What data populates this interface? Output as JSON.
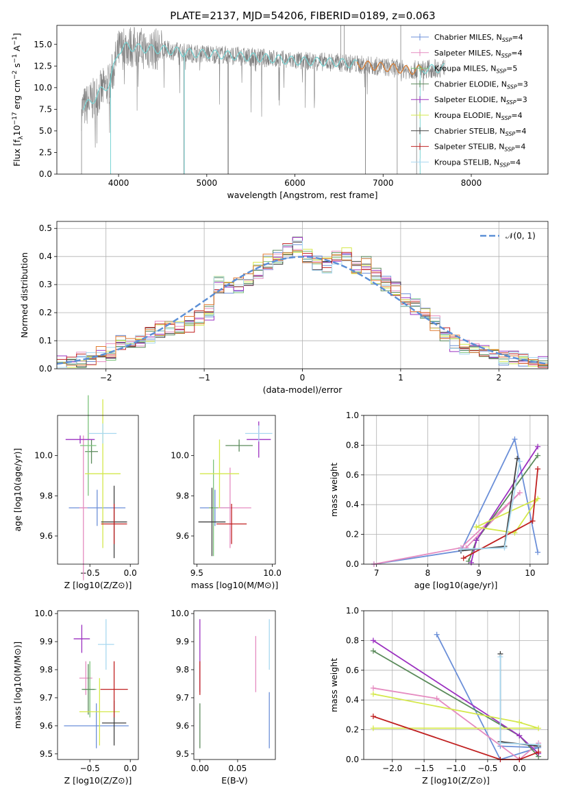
{
  "page_title": "PLATE=2137, MJD=54206, FIBERID=0189, z=0.063",
  "series_styles": [
    {
      "name": "Chabrier MILES, N$_{SSP}$=4",
      "label_main": "Chabrier MILES, N",
      "label_sub": "SSP",
      "label_tail": "=4",
      "color": "#6b8fd8"
    },
    {
      "name": "Salpeter MILES, N$_{SSP}$=4",
      "label_main": "Salpeter MILES, N",
      "label_sub": "SSP",
      "label_tail": "=4",
      "color": "#e58bc0"
    },
    {
      "name": "Kroupa MILES, N$_{SSP}$=5",
      "label_main": "Kroupa MILES, N",
      "label_sub": "SSP",
      "label_tail": "=5",
      "color": "#7ac27a"
    },
    {
      "name": "Chabrier ELODIE, N$_{SSP}$=3",
      "label_main": "Chabrier ELODIE, N",
      "label_sub": "SSP",
      "label_tail": "=3",
      "color": "#5a8a5a"
    },
    {
      "name": "Salpeter ELODIE, N$_{SSP}$=3",
      "label_main": "Salpeter ELODIE, N",
      "label_sub": "SSP",
      "label_tail": "=3",
      "color": "#9b30c0"
    },
    {
      "name": "Kroupa ELODIE, N$_{SSP}$=4",
      "label_main": "Kroupa ELODIE, N",
      "label_sub": "SSP",
      "label_tail": "=4",
      "color": "#d4e84a"
    },
    {
      "name": "Chabrier STELIB, N$_{SSP}$=4",
      "label_main": "Chabrier STELIB, N",
      "label_sub": "SSP",
      "label_tail": "=4",
      "color": "#404040"
    },
    {
      "name": "Salpeter STELIB, N$_{SSP}$=4",
      "label_main": "Salpeter STELIB, N",
      "label_sub": "SSP",
      "label_tail": "=4",
      "color": "#c02020"
    },
    {
      "name": "Kroupa STELIB, N$_{SSP}$=4",
      "label_main": "Kroupa STELIB, N",
      "label_sub": "SSP",
      "label_tail": "=4",
      "color": "#a8d8f0"
    }
  ],
  "chart_data": [
    {
      "id": "spectrum",
      "type": "line",
      "title": "PLATE=2137, MJD=54206, FIBERID=0189, z=0.063",
      "xlabel": "wavelength [Angstrom, rest frame]",
      "ylabel_main": "Flux [f",
      "ylabel_tail": "10",
      "ylabel_exp": "−17",
      "ylabel_rest": " erg cm",
      "ylabel_exp2": "−2",
      "ylabel_rest2": " s",
      "ylabel_exp3": "−1",
      "ylabel_rest3": " A",
      "ylabel_exp4": "−1",
      "ylabel_end": "]",
      "xlim": [
        3300,
        8870
      ],
      "ylim": [
        0,
        17.2
      ],
      "xticks": [
        4000,
        5000,
        6000,
        7000,
        8000
      ],
      "yticks": [
        0.0,
        2.5,
        5.0,
        7.5,
        10.0,
        12.5,
        15.0
      ],
      "legend": "upper right",
      "grid": false,
      "observed_color": "#808080",
      "model_color": "#79d4d4",
      "model_color_red": "#e07a30",
      "continuum": {
        "x": [
          3580,
          3700,
          3800,
          3900,
          3950,
          4000,
          4100,
          4200,
          4300,
          4500,
          4800,
          5000,
          5200,
          5400,
          5700,
          6000,
          6300,
          6500,
          6700,
          6900,
          7100,
          7300,
          7400,
          7600,
          7700
        ],
        "y": [
          7.5,
          8.5,
          9.6,
          10.5,
          12.5,
          14.3,
          14.8,
          14.6,
          14.5,
          14.4,
          14.0,
          13.9,
          13.8,
          13.6,
          13.4,
          13.1,
          13.0,
          12.9,
          12.7,
          12.5,
          12.3,
          12.0,
          12.1,
          12.2,
          12.3
        ]
      }
    },
    {
      "id": "residuals",
      "type": "step",
      "xlabel": "(data-model)/error",
      "ylabel": "Normed distribution",
      "xlim": [
        -2.5,
        2.5
      ],
      "ylim": [
        0,
        0.525
      ],
      "xticks": [
        -2,
        -1,
        0,
        1,
        2
      ],
      "yticks": [
        0.0,
        0.1,
        0.2,
        0.3,
        0.4,
        0.5
      ],
      "grid": true,
      "legend": "upper right",
      "gaussian_label": "𝒩(0, 1)",
      "gaussian_color": "#5b8fd6",
      "bin_edges_start": -2.5,
      "bin_width": 0.1,
      "base_hist": [
        0.02,
        0.025,
        0.03,
        0.04,
        0.05,
        0.06,
        0.09,
        0.085,
        0.1,
        0.12,
        0.14,
        0.15,
        0.14,
        0.16,
        0.18,
        0.2,
        0.3,
        0.28,
        0.3,
        0.32,
        0.35,
        0.38,
        0.4,
        0.42,
        0.44,
        0.4,
        0.38,
        0.37,
        0.39,
        0.41,
        0.36,
        0.37,
        0.33,
        0.3,
        0.28,
        0.25,
        0.22,
        0.2,
        0.16,
        0.12,
        0.09,
        0.08,
        0.075,
        0.06,
        0.05,
        0.04,
        0.035,
        0.03,
        0.025,
        0.02
      ]
    },
    {
      "id": "age_vs_Z",
      "type": "errorbar",
      "xlabel": "Z [log10(Z/Z⊙)]",
      "ylabel": "age  [log10(age/yr)]",
      "xlim": [
        -0.9,
        0.1
      ],
      "ylim": [
        9.46,
        10.2
      ],
      "xticks": [
        -0.5,
        0.0
      ],
      "yticks": [
        9.6,
        9.8,
        10.0
      ],
      "points": [
        {
          "x": -0.41,
          "y": 9.74,
          "xerr": 0.35,
          "yerr": 0.09,
          "series": 0
        },
        {
          "x": -0.58,
          "y": 9.74,
          "xerr": 0.05,
          "yerr": 0.36,
          "series": 1
        },
        {
          "x": -0.48,
          "y": 10.02,
          "xerr": 0.08,
          "yerr": 0.06,
          "series": 3
        },
        {
          "x": -0.52,
          "y": 10.05,
          "xerr": 0.1,
          "yerr": 0.25,
          "series": 2
        },
        {
          "x": -0.62,
          "y": 10.08,
          "xerr": 0.18,
          "yerr": 0.02,
          "series": 4
        },
        {
          "x": -0.34,
          "y": 9.91,
          "xerr": 0.22,
          "yerr": 0.37,
          "series": 5
        },
        {
          "x": -0.2,
          "y": 9.67,
          "xerr": 0.16,
          "yerr": 0.18,
          "series": 6
        },
        {
          "x": -0.2,
          "y": 9.66,
          "xerr": 0.16,
          "yerr": 0.1,
          "series": 7
        },
        {
          "x": -0.34,
          "y": 10.11,
          "xerr": 0.17,
          "yerr": 0.05,
          "series": 8
        }
      ]
    },
    {
      "id": "age_vs_mass",
      "type": "errorbar",
      "xlabel": "mass [log10(M/M⊙)]",
      "xlim": [
        9.48,
        10.02
      ],
      "ylim": [
        9.46,
        10.2
      ],
      "xticks": [
        9.5,
        10.0
      ],
      "yticks": [
        9.6,
        9.8,
        10.0
      ],
      "points": [
        {
          "x": 9.62,
          "y": 9.74,
          "xerr": 0.1,
          "yerr": 0.09,
          "series": 0
        },
        {
          "x": 9.72,
          "y": 9.74,
          "xerr": 0.14,
          "yerr": 0.2,
          "series": 1
        },
        {
          "x": 9.61,
          "y": 9.74,
          "xerr": 0.03,
          "yerr": 0.24,
          "series": 2
        },
        {
          "x": 9.78,
          "y": 10.05,
          "xerr": 0.09,
          "yerr": 0.03,
          "series": 3
        },
        {
          "x": 9.91,
          "y": 10.08,
          "xerr": 0.08,
          "yerr": 0.09,
          "series": 4
        },
        {
          "x": 9.65,
          "y": 9.91,
          "xerr": 0.13,
          "yerr": 0.17,
          "series": 5
        },
        {
          "x": 9.6,
          "y": 9.67,
          "xerr": 0.09,
          "yerr": 0.17,
          "series": 6
        },
        {
          "x": 9.73,
          "y": 9.66,
          "xerr": 0.1,
          "yerr": 0.1,
          "series": 7
        },
        {
          "x": 9.91,
          "y": 10.11,
          "xerr": 0.09,
          "yerr": 0.04,
          "series": 8
        }
      ]
    },
    {
      "id": "weight_vs_age",
      "type": "line",
      "xlabel": "age  [log10(age/yr)]",
      "ylabel": "mass weight",
      "xlim": [
        6.75,
        10.35
      ],
      "ylim": [
        0,
        1.0
      ],
      "xticks": [
        7,
        8,
        9,
        10
      ],
      "yticks": [
        0.0,
        0.2,
        0.4,
        0.6,
        0.8,
        1.0
      ],
      "grid": true,
      "lines": [
        {
          "series": 0,
          "x": [
            6.95,
            8.65,
            9.7,
            10.15
          ],
          "y": [
            0.0,
            0.09,
            0.84,
            0.08
          ]
        },
        {
          "series": 1,
          "x": [
            6.95,
            8.65,
            9.8,
            8.75
          ],
          "y": [
            0.0,
            0.11,
            0.48,
            0.11
          ]
        },
        {
          "series": 3,
          "x": [
            8.8,
            8.95,
            10.15
          ],
          "y": [
            0.02,
            0.16,
            0.73
          ]
        },
        {
          "series": 4,
          "x": [
            8.85,
            8.95,
            10.15
          ],
          "y": [
            0.01,
            0.16,
            0.79
          ]
        },
        {
          "series": 5,
          "x": [
            8.95,
            9.7,
            10.15,
            8.95
          ],
          "y": [
            0.25,
            0.21,
            0.44,
            0.25
          ]
        },
        {
          "series": 7,
          "x": [
            8.7,
            10.05,
            10.15
          ],
          "y": [
            0.04,
            0.29,
            0.64
          ]
        },
        {
          "series": 6,
          "x": [
            8.65,
            9.5,
            9.75
          ],
          "y": [
            0.09,
            0.12,
            0.71
          ]
        },
        {
          "series": 8,
          "x": [
            8.65,
            9.5,
            9.8
          ],
          "y": [
            0.1,
            0.11,
            0.69
          ]
        }
      ]
    },
    {
      "id": "mass_vs_Z",
      "type": "errorbar",
      "xlabel": "Z [log10(Z/Z⊙)]",
      "ylabel": "mass [log10(M/M⊙)]",
      "xlim": [
        -0.9,
        0.1
      ],
      "ylim": [
        9.48,
        10.01
      ],
      "xticks": [
        -0.5,
        0.0
      ],
      "yticks": [
        9.5,
        9.6,
        9.7,
        9.8,
        9.9,
        10.0
      ],
      "points": [
        {
          "x": -0.42,
          "y": 9.6,
          "xerr": 0.4,
          "yerr": 0.08,
          "series": 0
        },
        {
          "x": -0.55,
          "y": 9.77,
          "xerr": 0.08,
          "yerr": 0.06,
          "series": 1
        },
        {
          "x": -0.5,
          "y": 9.73,
          "xerr": 0.08,
          "yerr": 0.1,
          "series": 2
        },
        {
          "x": -0.52,
          "y": 9.73,
          "xerr": 0.08,
          "yerr": 0.09,
          "series": 3
        },
        {
          "x": -0.6,
          "y": 9.91,
          "xerr": 0.1,
          "yerr": 0.05,
          "series": 4
        },
        {
          "x": -0.38,
          "y": 9.65,
          "xerr": 0.25,
          "yerr": 0.12,
          "series": 5
        },
        {
          "x": -0.2,
          "y": 9.61,
          "xerr": 0.15,
          "yerr": 0.08,
          "series": 6
        },
        {
          "x": -0.2,
          "y": 9.73,
          "xerr": 0.17,
          "yerr": 0.1,
          "series": 7
        },
        {
          "x": -0.3,
          "y": 9.89,
          "xerr": 0.1,
          "yerr": 0.09,
          "series": 8
        }
      ]
    },
    {
      "id": "mass_vs_ebv",
      "type": "errorbar",
      "xlabel": "E(B-V)",
      "xlim": [
        -0.008,
        0.1
      ],
      "ylim": [
        9.48,
        10.01
      ],
      "xticks": [
        0.0,
        0.05
      ],
      "yticks": [
        9.5,
        9.6,
        9.7,
        9.8,
        9.9,
        10.0
      ],
      "points": [
        {
          "x": 0.0,
          "y": 9.85,
          "xerr": 0,
          "yerr": 0.13,
          "series": 4
        },
        {
          "x": 0.0,
          "y": 9.6,
          "xerr": 0,
          "yerr": 0.08,
          "series": 3
        },
        {
          "x": 0.0,
          "y": 9.77,
          "xerr": 0,
          "yerr": 0.06,
          "series": 7
        },
        {
          "x": 0.074,
          "y": 9.82,
          "xerr": 0,
          "yerr": 0.1,
          "series": 1
        },
        {
          "x": 0.092,
          "y": 9.89,
          "xerr": 0,
          "yerr": 0.09,
          "series": 8
        },
        {
          "x": 0.092,
          "y": 9.62,
          "xerr": 0,
          "yerr": 0.1,
          "series": 0
        }
      ]
    },
    {
      "id": "weight_vs_Z",
      "type": "line",
      "xlabel": "Z [log10(Z/Z⊙)]",
      "ylabel": "mass weight",
      "xlim": [
        -2.45,
        0.45
      ],
      "ylim": [
        0,
        1.0
      ],
      "xticks": [
        -2.0,
        -1.5,
        -1.0,
        -0.5,
        0.0
      ],
      "yticks": [
        0.0,
        0.2,
        0.4,
        0.6,
        0.8,
        1.0
      ],
      "grid": true,
      "lines": [
        {
          "series": 0,
          "x": [
            -1.3,
            -0.3,
            0.3,
            -0.3
          ],
          "y": [
            0.84,
            0.0,
            0.08,
            0.09
          ]
        },
        {
          "series": 1,
          "x": [
            -2.3,
            -1.3,
            0.0,
            0.3
          ],
          "y": [
            0.48,
            0.41,
            0.0,
            0.11
          ]
        },
        {
          "series": 3,
          "x": [
            -2.3,
            0.0,
            0.3
          ],
          "y": [
            0.73,
            0.16,
            0.02
          ]
        },
        {
          "series": 4,
          "x": [
            -2.3,
            0.0,
            0.3
          ],
          "y": [
            0.8,
            0.16,
            0.04
          ]
        },
        {
          "series": 5,
          "x": [
            -2.3,
            0.0,
            0.3,
            -2.3
          ],
          "y": [
            0.44,
            0.25,
            0.21,
            0.21
          ]
        },
        {
          "series": 7,
          "x": [
            -2.3,
            -0.3,
            0.0,
            0.3
          ],
          "y": [
            0.29,
            0.0,
            0.0,
            0.05
          ]
        },
        {
          "series": 6,
          "x": [
            -0.3,
            -0.3,
            0.3
          ],
          "y": [
            0.71,
            0.12,
            0.09
          ]
        },
        {
          "series": 8,
          "x": [
            -0.3,
            -0.3,
            0.3
          ],
          "y": [
            0.69,
            0.11,
            0.1
          ]
        }
      ]
    }
  ]
}
